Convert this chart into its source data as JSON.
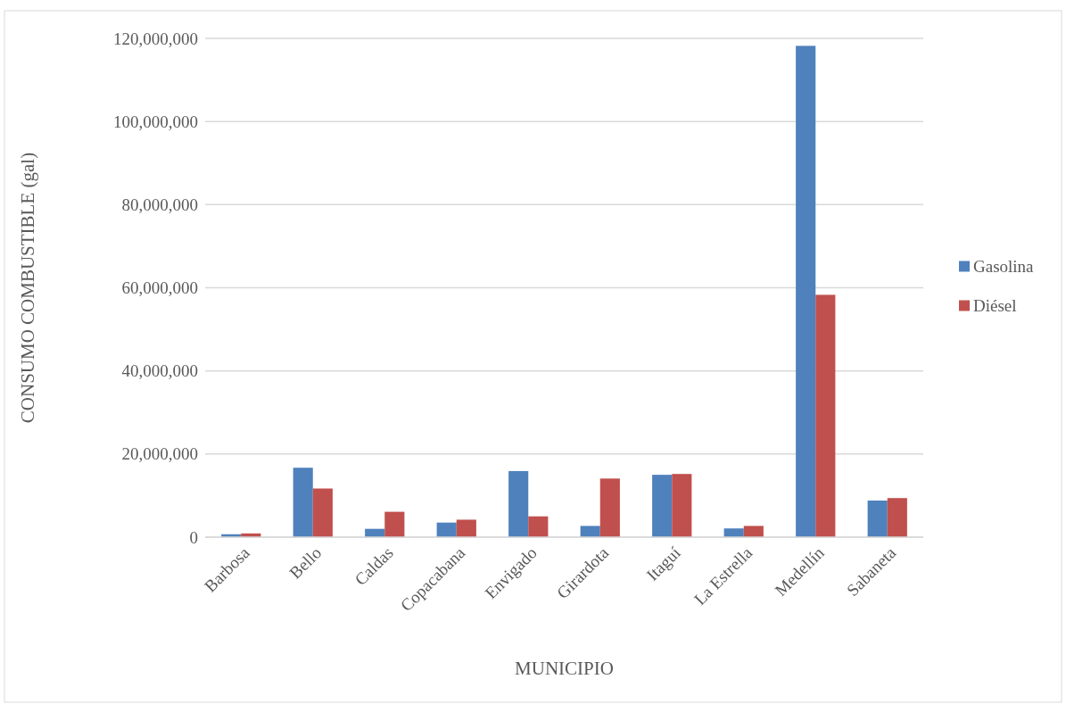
{
  "chart_data": {
    "type": "bar",
    "xlabel": "MUNICIPIO",
    "ylabel": "CONSUMO COMBUSTIBLE (gal)",
    "categories": [
      "Barbosa",
      "Bello",
      "Caldas",
      "Copacabana",
      "Envigado",
      "Girardota",
      "Itaguí",
      "La Estrella",
      "Medellín",
      "Sabaneta"
    ],
    "series": [
      {
        "name": "Gasolina",
        "color": "#4f81bd",
        "values": [
          700000,
          16700000,
          2000000,
          3500000,
          15900000,
          2700000,
          15000000,
          2100000,
          118200000,
          8800000
        ]
      },
      {
        "name": "Diésel",
        "color": "#c0504d",
        "values": [
          900000,
          11700000,
          6100000,
          4200000,
          5000000,
          14100000,
          15200000,
          2700000,
          58300000,
          9400000
        ]
      }
    ],
    "ylim": [
      0,
      120000000
    ],
    "yticks": [
      {
        "value": 0,
        "label": "0"
      },
      {
        "value": 20000000,
        "label": "20,000,000"
      },
      {
        "value": 40000000,
        "label": "40,000,000"
      },
      {
        "value": 60000000,
        "label": "60,000,000"
      },
      {
        "value": 80000000,
        "label": "80,000,000"
      },
      {
        "value": 100000000,
        "label": "100,000,000"
      },
      {
        "value": 120000000,
        "label": "120,000,000"
      }
    ],
    "grid": "y",
    "legend": "right"
  }
}
